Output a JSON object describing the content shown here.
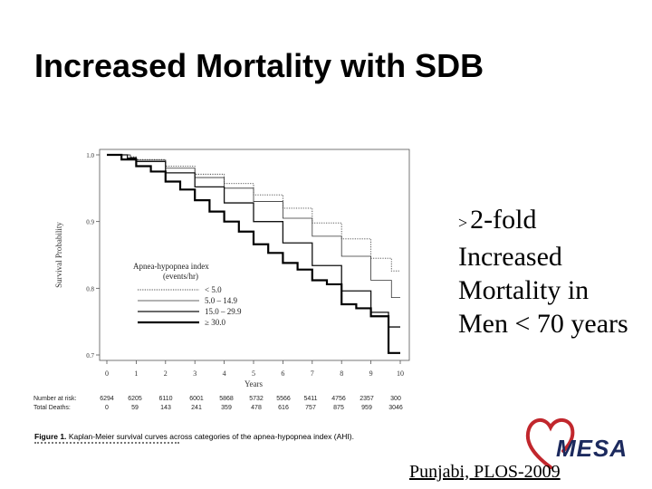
{
  "slide": {
    "title": "Increased Mortality with SDB",
    "callout": {
      "symbol": ">",
      "lines": [
        "2-fold",
        "Increased",
        "Mortality in",
        "Men < 70 years"
      ]
    },
    "citation": "Punjabi, PLOS-2009",
    "logo_text": "MESA",
    "logo_color": "#c1272d"
  },
  "chart_data": {
    "type": "line",
    "title": "",
    "xlabel": "Years",
    "ylabel": "Survival Probability",
    "xlim": [
      0,
      10
    ],
    "ylim": [
      0.7,
      1.0
    ],
    "x_ticks": [
      "0",
      "1",
      "2",
      "3",
      "4",
      "5",
      "6",
      "7",
      "8",
      "9",
      "10"
    ],
    "y_ticks": [
      "0.7",
      "0.8",
      "0.9",
      "1.0"
    ],
    "legend_title": "Apnea-hypopnea index",
    "legend_subtitle": "(events/hr)",
    "legend_position": "lower-left",
    "series": [
      {
        "name": "< 5.0",
        "style": "dotted",
        "x": [
          0,
          0.8,
          1,
          2,
          3,
          4,
          5,
          6,
          7,
          8,
          9,
          9.7,
          10
        ],
        "y": [
          1.0,
          0.997,
          0.993,
          0.983,
          0.971,
          0.957,
          0.94,
          0.92,
          0.898,
          0.874,
          0.845,
          0.826,
          0.826
        ]
      },
      {
        "name": "5.0 – 14.9",
        "style": "thin",
        "x": [
          0,
          0.8,
          1,
          2,
          3,
          4,
          5,
          6,
          7,
          8,
          9,
          9.7,
          10
        ],
        "y": [
          1.0,
          0.996,
          0.992,
          0.98,
          0.966,
          0.95,
          0.93,
          0.905,
          0.878,
          0.848,
          0.812,
          0.786,
          0.786
        ]
      },
      {
        "name": "15.0 – 29.9",
        "style": "medium",
        "x": [
          0,
          0.7,
          1,
          2,
          3,
          4,
          5,
          6,
          7,
          8,
          9,
          9.6,
          10
        ],
        "y": [
          1.0,
          0.995,
          0.99,
          0.973,
          0.952,
          0.928,
          0.9,
          0.868,
          0.834,
          0.796,
          0.764,
          0.742,
          0.742
        ]
      },
      {
        "name": "≥ 30.0",
        "style": "thick",
        "x": [
          0,
          0.5,
          1,
          1.5,
          2,
          2.5,
          3,
          3.5,
          4,
          4.5,
          5,
          5.5,
          6,
          6.5,
          7,
          7.5,
          8,
          8.5,
          9,
          9.6,
          10
        ],
        "y": [
          1.0,
          0.993,
          0.983,
          0.975,
          0.96,
          0.948,
          0.932,
          0.915,
          0.9,
          0.885,
          0.866,
          0.853,
          0.838,
          0.828,
          0.812,
          0.806,
          0.776,
          0.77,
          0.758,
          0.703,
          0.703
        ]
      }
    ]
  },
  "risk_table": {
    "rows": [
      {
        "label": "Number at risk:",
        "values": [
          "6294",
          "6205",
          "6110",
          "6001",
          "5868",
          "5732",
          "5566",
          "5411",
          "4756",
          "2357",
          "300"
        ]
      },
      {
        "label": "Total Deaths:",
        "values": [
          "0",
          "59",
          "143",
          "241",
          "359",
          "478",
          "616",
          "757",
          "875",
          "959",
          "3046"
        ]
      }
    ]
  },
  "caption": {
    "label": "Figure 1.",
    "text": "Kaplan-Meier survival curves across categories of the apnea-hypopnea index (AHI)."
  }
}
